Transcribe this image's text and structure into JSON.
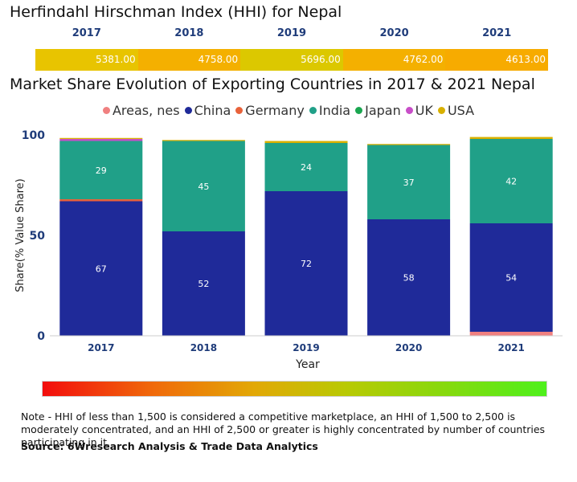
{
  "hhi": {
    "title": "Herfindahl Hirschman Index (HHI) for Nepal",
    "years": [
      "2017",
      "2018",
      "2019",
      "2020",
      "2021"
    ],
    "values": [
      "5381.00",
      "4758.00",
      "5696.00",
      "4762.00",
      "4613.00"
    ],
    "colors": [
      "#e8c400",
      "#f4b000",
      "#dcc800",
      "#f4b000",
      "#f7ab00"
    ]
  },
  "chart_data": {
    "type": "bar",
    "stacked": true,
    "title": "Market Share Evolution of Exporting Countries in 2017 & 2021 Nepal",
    "xlabel": "Year",
    "ylabel": "Share(% Value Share)",
    "ylim": [
      0,
      100
    ],
    "yticks": [
      0,
      50,
      100
    ],
    "categories": [
      "2017",
      "2018",
      "2019",
      "2020",
      "2021"
    ],
    "series": [
      {
        "name": "Areas, nes",
        "color": "#f08080",
        "values": [
          0,
          0,
          0,
          0,
          2
        ],
        "labels": [
          "",
          "",
          "",
          "",
          ""
        ]
      },
      {
        "name": "China",
        "color": "#1f2a99",
        "values": [
          67,
          52,
          72,
          58,
          54
        ],
        "labels": [
          "67",
          "52",
          "72",
          "58",
          "54"
        ]
      },
      {
        "name": "Germany",
        "color": "#e8623a",
        "values": [
          1,
          0,
          0,
          0,
          0
        ],
        "labels": [
          "",
          "",
          "",
          "",
          ""
        ]
      },
      {
        "name": "India",
        "color": "#20a088",
        "values": [
          29,
          45,
          24,
          37,
          42
        ],
        "labels": [
          "29",
          "45",
          "24",
          "37",
          "42"
        ]
      },
      {
        "name": "Japan",
        "color": "#1aa650",
        "values": [
          0,
          0,
          0,
          0,
          0
        ],
        "labels": [
          "",
          "",
          "",
          "",
          ""
        ]
      },
      {
        "name": "UK",
        "color": "#c84ec8",
        "values": [
          1,
          0,
          0,
          0,
          0
        ],
        "labels": [
          "",
          "",
          "",
          "",
          ""
        ]
      },
      {
        "name": "USA",
        "color": "#d8b000",
        "values": [
          0.5,
          0.5,
          1,
          0.5,
          1
        ],
        "labels": [
          "",
          "",
          "",
          "",
          ""
        ]
      }
    ]
  },
  "note": {
    "text": "Note - HHI of less than 1,500 is considered a competitive marketplace, an HHI of 1,500 to 2,500 is moderately concentrated, and an HHI of 2,500 or greater is highly concentrated by number of countries participating in it.",
    "source": "Source: 6Wresearch Analysis & Trade Data Analytics"
  }
}
